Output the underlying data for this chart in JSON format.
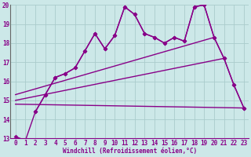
{
  "xlabel": "Windchill (Refroidissement éolien,°C)",
  "bg_color": "#cce8e8",
  "grid_color": "#aacccc",
  "line_color": "#880088",
  "xlim": [
    -0.5,
    23.5
  ],
  "ylim": [
    13,
    20
  ],
  "yticks": [
    13,
    14,
    15,
    16,
    17,
    18,
    19,
    20
  ],
  "xticks": [
    0,
    1,
    2,
    3,
    4,
    5,
    6,
    7,
    8,
    9,
    10,
    11,
    12,
    13,
    14,
    15,
    16,
    17,
    18,
    19,
    20,
    21,
    22,
    23
  ],
  "series": [
    {
      "x": [
        0,
        1,
        2,
        3,
        4,
        5,
        6,
        7,
        8,
        9,
        10,
        11,
        12,
        13,
        14,
        15,
        16,
        17,
        18,
        19,
        20,
        21,
        22,
        23
      ],
      "y": [
        13.1,
        12.9,
        14.4,
        15.3,
        16.2,
        16.4,
        16.7,
        17.6,
        18.5,
        17.7,
        18.4,
        19.9,
        19.5,
        18.5,
        18.3,
        18.0,
        18.3,
        18.1,
        19.9,
        20.0,
        18.3,
        17.2,
        15.8,
        14.6
      ],
      "has_markers": true
    },
    {
      "x": [
        2,
        3,
        4,
        5,
        6,
        7,
        8,
        9,
        10,
        11,
        12,
        13,
        14,
        15,
        16,
        17,
        18,
        19,
        20,
        21,
        22,
        23
      ],
      "y": [
        14.4,
        15.3,
        16.2,
        16.4,
        16.7,
        17.6,
        18.5,
        17.7,
        18.4,
        19.9,
        19.5,
        18.5,
        18.3,
        18.0,
        18.3,
        18.1,
        19.9,
        20.0,
        18.3,
        17.2,
        15.8,
        14.6
      ],
      "has_markers": true
    },
    {
      "x": [
        0,
        20
      ],
      "y": [
        15.3,
        18.3
      ],
      "has_markers": false
    },
    {
      "x": [
        0,
        21
      ],
      "y": [
        15.0,
        17.2
      ],
      "has_markers": false
    },
    {
      "x": [
        0,
        23
      ],
      "y": [
        14.8,
        14.6
      ],
      "has_markers": false
    }
  ],
  "marker": "D",
  "markersize": 2.5,
  "linewidth": 1.0
}
